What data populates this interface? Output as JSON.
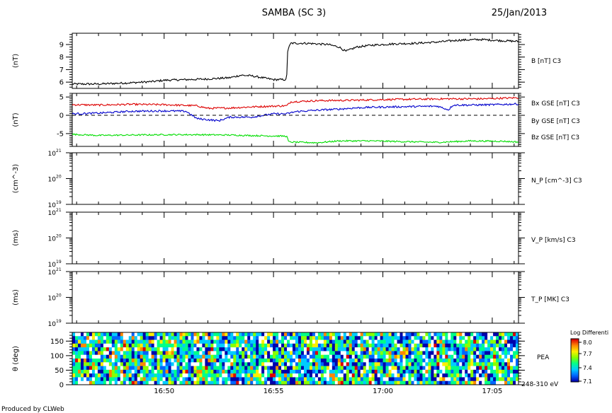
{
  "header": {
    "title": "SAMBA (SC 3)",
    "date": "25/Jan/2013"
  },
  "footer": {
    "credit": "Produced by CLWeb"
  },
  "x_axis": {
    "range_min": [
      16,
      45.8
    ],
    "range_max": [
      17,
      6.2
    ],
    "ticks": [
      {
        "label": "16:50",
        "min": 50
      },
      {
        "label": "16:55",
        "min": 55
      },
      {
        "label": "17:00",
        "min": 60
      },
      {
        "label": "17:05",
        "min": 65
      }
    ]
  },
  "panels": {
    "b": {
      "ylabel": "(nT)",
      "yticks": [
        "6",
        "7",
        "8",
        "9"
      ],
      "legend": "B [nT] C3"
    },
    "bxyz": {
      "ylabel": "(nT)",
      "yticks": [
        "-5",
        "0",
        "5"
      ],
      "legend_bx": "Bx GSE [nT] C3",
      "legend_by": "By GSE [nT] C3",
      "legend_bz": "Bz GSE [nT] C3"
    },
    "np": {
      "ylabel": "(cm^-3)",
      "ytick_base": "10",
      "ytick_exps": [
        "19",
        "20",
        "21"
      ],
      "legend": "N_P [cm^-3] C3"
    },
    "vp": {
      "ylabel": "(ms)",
      "ytick_base": "10",
      "ytick_exps": [
        "19",
        "20",
        "21"
      ],
      "legend": "V_P [km/s] C3"
    },
    "tp": {
      "ylabel": "(ms)",
      "ytick_base": "10",
      "ytick_exps": [
        "19",
        "20",
        "21"
      ],
      "legend": "T_P [MK] C3"
    },
    "pea": {
      "ylabel": "θ (deg)",
      "yticks": [
        "0",
        "50",
        "100",
        "150"
      ],
      "legend": "PEA",
      "energy": "248-310 eV",
      "colorbar_title": "Log Differenti",
      "colorbar_ticks": [
        "8.0",
        "7.7",
        "7.4",
        "7.1"
      ]
    }
  },
  "colors": {
    "bx": "#dd0000",
    "by": "#00dd00",
    "bz": "#0000cc",
    "credit": "#0000aa"
  },
  "chart_data": [
    {
      "type": "line",
      "panel": "b",
      "xlabel": "",
      "ylabel": "(nT)",
      "ylim": [
        5.5,
        9.9
      ],
      "series": [
        {
          "name": "B [nT] C3",
          "x": [
            45.8,
            47.0,
            48.5,
            49.5,
            50.0,
            51.0,
            52.0,
            53.0,
            53.5,
            54.0,
            55.0,
            55.6,
            55.65,
            55.8,
            56.5,
            57.5,
            58.0,
            58.3,
            58.8,
            59.5,
            60.5,
            61.5,
            62.5,
            63.5,
            64.5,
            65.5,
            66.2
          ],
          "y": [
            5.85,
            5.85,
            5.95,
            6.05,
            6.15,
            6.2,
            6.25,
            6.35,
            6.55,
            6.5,
            6.2,
            6.2,
            8.6,
            9.1,
            9.1,
            9.0,
            8.8,
            8.45,
            8.8,
            8.95,
            9.05,
            9.1,
            9.2,
            9.35,
            9.4,
            9.3,
            9.25
          ]
        }
      ]
    },
    {
      "type": "line",
      "panel": "bxyz",
      "xlabel": "",
      "ylabel": "(nT)",
      "ylim": [
        -8.5,
        6
      ],
      "reference_line_y": 0,
      "series": [
        {
          "name": "Bx GSE [nT] C3",
          "x": [
            45.8,
            47.0,
            48.5,
            50.0,
            51.5,
            52.0,
            53.0,
            54.0,
            55.0,
            55.6,
            55.8,
            57.0,
            58.5,
            60.0,
            61.5,
            63.0,
            64.5,
            66.2
          ],
          "y": [
            2.9,
            2.8,
            3.0,
            2.9,
            2.6,
            1.9,
            2.0,
            2.3,
            2.5,
            2.6,
            3.7,
            4.0,
            4.1,
            4.3,
            4.4,
            4.5,
            4.5,
            4.8
          ]
        },
        {
          "name": "By GSE [nT] C3",
          "x": [
            45.8,
            47.0,
            48.5,
            50.0,
            51.5,
            53.0,
            54.5,
            55.6,
            55.7,
            57.0,
            58.0,
            59.5,
            61.0,
            62.5,
            64.0,
            65.5,
            66.2
          ],
          "y": [
            -5.2,
            -5.5,
            -5.4,
            -5.3,
            -5.3,
            -5.4,
            -5.6,
            -5.7,
            -7.3,
            -7.5,
            -7.0,
            -7.0,
            -7.2,
            -7.4,
            -7.0,
            -7.1,
            -7.3
          ]
        },
        {
          "name": "Bz GSE [nT] C3",
          "x": [
            45.8,
            47.0,
            48.5,
            50.0,
            51.0,
            51.5,
            52.5,
            53.0,
            54.0,
            55.0,
            55.6,
            56.0,
            57.0,
            58.0,
            58.7,
            59.5,
            60.5,
            61.5,
            62.5,
            63.0,
            63.2,
            64.0,
            65.0,
            66.2
          ],
          "y": [
            0.4,
            0.6,
            1.1,
            1.2,
            1.1,
            -0.9,
            -1.5,
            -0.5,
            -0.5,
            0.4,
            0.4,
            1.0,
            1.4,
            1.7,
            2.0,
            2.2,
            2.3,
            2.4,
            2.5,
            1.5,
            2.8,
            2.8,
            2.9,
            3.1
          ]
        }
      ]
    },
    {
      "type": "line",
      "panel": "np",
      "xlabel": "",
      "ylabel": "(cm^-3)",
      "scale": "log",
      "ylim": [
        1e+19,
        1e+21
      ],
      "series": []
    },
    {
      "type": "line",
      "panel": "vp",
      "xlabel": "",
      "ylabel": "(ms)",
      "scale": "log",
      "ylim": [
        1e+19,
        1e+21
      ],
      "series": []
    },
    {
      "type": "line",
      "panel": "tp",
      "xlabel": "",
      "ylabel": "(ms)",
      "scale": "log",
      "ylim": [
        1e+19,
        1e+21
      ],
      "series": []
    },
    {
      "type": "heatmap",
      "panel": "pea",
      "xlabel": "",
      "ylabel": "θ (deg)",
      "ylim": [
        0,
        180
      ],
      "zlim": [
        7.1,
        8.0
      ],
      "colorscale": [
        "#0000aa",
        "#0066ff",
        "#00ccff",
        "#00ff88",
        "#88ff00",
        "#ffee00",
        "#ff8800",
        "#dd0000"
      ],
      "value_range_note": "dense pitch-angle spectrogram, values mostly 7.2-7.6"
    }
  ]
}
